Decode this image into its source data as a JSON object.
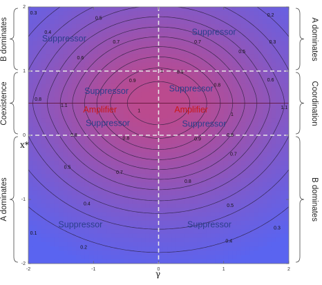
{
  "chart_data": {
    "type": "contour",
    "xlabel": "γ",
    "ylabel": "x*",
    "xlim": [
      -2,
      2
    ],
    "ylim": [
      -2,
      2
    ],
    "x_ticks": [
      "-2",
      "-1",
      "0",
      "1",
      "2"
    ],
    "y_ticks": [
      "2",
      "1",
      "0",
      "-1",
      "-2"
    ],
    "dashed_lines": {
      "x": [
        0
      ],
      "y": [
        0,
        1
      ]
    },
    "amplifier_line_y": 0.5,
    "colors": {
      "low": "#5a64f0",
      "high": "#bb4a8e",
      "lines": "#2a2040",
      "dashes": "#e8e8e8",
      "amplifier": "#c81818",
      "suppressor": "#2c3e8c"
    },
    "contour_labels": [
      {
        "text": "0.3",
        "x": -1.92,
        "y": 1.9
      },
      {
        "text": "0.4",
        "x": -1.7,
        "y": 1.6
      },
      {
        "text": "0.5",
        "x": -0.92,
        "y": 1.82
      },
      {
        "text": "0.6",
        "x": -1.2,
        "y": 1.2
      },
      {
        "text": "0.7",
        "x": -0.65,
        "y": 1.45
      },
      {
        "text": "0.8",
        "x": -1.85,
        "y": 0.56
      },
      {
        "text": "0.9",
        "x": -0.4,
        "y": 0.85
      },
      {
        "text": "1",
        "x": 0.05,
        "y": 1.0
      },
      {
        "text": "1.1",
        "x": -1.45,
        "y": 0.46
      },
      {
        "text": "1",
        "x": -0.3,
        "y": 0.38
      },
      {
        "text": "0.8",
        "x": -1.3,
        "y": 0.0
      },
      {
        "text": "0.8",
        "x": -0.5,
        "y": -0.05
      },
      {
        "text": "0.5",
        "x": -1.4,
        "y": -0.5
      },
      {
        "text": "0.7",
        "x": -0.6,
        "y": -0.58
      },
      {
        "text": "0.4",
        "x": -1.1,
        "y": -1.07
      },
      {
        "text": "0.1",
        "x": -1.92,
        "y": -1.53
      },
      {
        "text": "0.2",
        "x": -1.15,
        "y": -1.75
      },
      {
        "text": "0.2",
        "x": 1.72,
        "y": 1.87
      },
      {
        "text": "0.3",
        "x": 1.75,
        "y": 1.45
      },
      {
        "text": "0.5",
        "x": 1.28,
        "y": 1.3
      },
      {
        "text": "0.7",
        "x": 0.6,
        "y": 1.45
      },
      {
        "text": "0.6",
        "x": 1.72,
        "y": 0.86
      },
      {
        "text": "0.9",
        "x": 0.33,
        "y": 0.98
      },
      {
        "text": "0.8",
        "x": 0.9,
        "y": 0.78
      },
      {
        "text": "1.1",
        "x": 1.93,
        "y": 0.43
      },
      {
        "text": "1",
        "x": 1.13,
        "y": 0.32
      },
      {
        "text": "0.9",
        "x": 0.6,
        "y": -0.06
      },
      {
        "text": "0.8",
        "x": 1.1,
        "y": 0.0
      },
      {
        "text": "0.7",
        "x": 1.15,
        "y": -0.3
      },
      {
        "text": "0.8",
        "x": 0.45,
        "y": -0.72
      },
      {
        "text": "0.5",
        "x": 1.1,
        "y": -1.1
      },
      {
        "text": "0.4",
        "x": 1.08,
        "y": -1.65
      },
      {
        "text": "0.3",
        "x": 1.82,
        "y": -1.45
      }
    ],
    "annotations": [
      {
        "text": "Suppressor",
        "x": -1.45,
        "y": 1.5,
        "kind": "suppressor"
      },
      {
        "text": "Suppressor",
        "x": 0.85,
        "y": 1.6,
        "kind": "suppressor"
      },
      {
        "text": "Suppressor",
        "x": -0.8,
        "y": 0.68,
        "kind": "suppressor"
      },
      {
        "text": "Suppressor",
        "x": 0.5,
        "y": 0.72,
        "kind": "suppressor"
      },
      {
        "text": "Amplifier",
        "x": -0.9,
        "y": 0.39,
        "kind": "amplifier"
      },
      {
        "text": "Amplifier",
        "x": 0.5,
        "y": 0.39,
        "kind": "amplifier"
      },
      {
        "text": "Suppressor",
        "x": -0.78,
        "y": 0.18,
        "kind": "suppressor"
      },
      {
        "text": "Suppressor",
        "x": 0.7,
        "y": 0.17,
        "kind": "suppressor"
      },
      {
        "text": "Suppressor",
        "x": -1.2,
        "y": -1.4,
        "kind": "suppressor"
      },
      {
        "text": "Suppressor",
        "x": 0.78,
        "y": -1.4,
        "kind": "suppressor"
      }
    ],
    "left_regions": [
      {
        "text": "B dominates",
        "from": 1,
        "to": 2
      },
      {
        "text": "Coexistence",
        "from": 0,
        "to": 1
      },
      {
        "text": "A dominates",
        "from": -2,
        "to": 0
      }
    ],
    "right_regions": [
      {
        "text": "A dominates",
        "from": 1,
        "to": 2
      },
      {
        "text": "Coordination",
        "from": 0,
        "to": 1
      },
      {
        "text": "B dominates",
        "from": -2,
        "to": 0
      }
    ]
  }
}
